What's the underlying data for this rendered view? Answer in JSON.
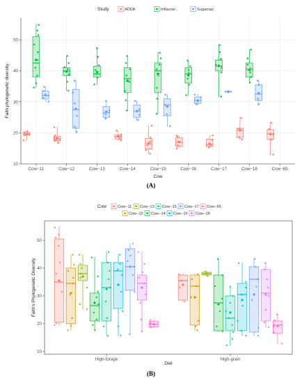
{
  "chart_data": [
    {
      "type": "box",
      "title": "",
      "legend_title": "Study",
      "legend_position": "top",
      "xlabel": "Cow",
      "ylabel": "Faith phylogenetic diversity",
      "ylim": [
        10,
        57
      ],
      "yticks": [
        10,
        20,
        30,
        40,
        50
      ],
      "grid": true,
      "categories": [
        "Cow−11",
        "Cow−12",
        "Cow−13",
        "Cow−14",
        "Cow−15",
        "Cow−16",
        "Cow−17",
        "Cow−18",
        "Cow−65"
      ],
      "series": [
        {
          "name": "ADDA",
          "color": "#F8766D",
          "boxes": [
            {
              "cat": 0,
              "min": 17.5,
              "q1": 19.3,
              "median": 19.7,
              "q3": 20.1,
              "max": 20.5,
              "mean": 19.6,
              "points": [
                17.6,
                19.2,
                19.5,
                19.9,
                20.2,
                20.5
              ]
            },
            {
              "cat": 1,
              "min": 16.7,
              "q1": 17.5,
              "median": 18.0,
              "q3": 18.9,
              "max": 22.0,
              "mean": 18.3,
              "points": [
                16.8,
                17.4,
                17.9,
                18.5,
                19.2,
                21.8
              ]
            },
            {
              "cat": 3,
              "min": 17.6,
              "q1": 18.0,
              "median": 18.8,
              "q3": 19.4,
              "max": 20.8,
              "mean": 18.9,
              "points": [
                17.6,
                18.2,
                18.9,
                19.5,
                20.7
              ]
            },
            {
              "cat": 4,
              "min": 13.2,
              "q1": 14.8,
              "median": 16.5,
              "q3": 18.2,
              "max": 22.5,
              "mean": 16.6,
              "points": [
                13.3,
                14.5,
                16.0,
                17.2,
                18.5,
                22.3
              ]
            },
            {
              "cat": 5,
              "min": 15.0,
              "q1": 15.7,
              "median": 17.0,
              "q3": 18.5,
              "max": 19.2,
              "mean": 17.1,
              "points": [
                15.0,
                16.0,
                17.2,
                18.7,
                19.1
              ]
            },
            {
              "cat": 6,
              "min": 15.2,
              "q1": 15.6,
              "median": 16.2,
              "q3": 18.0,
              "max": 19.3,
              "mean": 16.5,
              "points": [
                15.3,
                16.0,
                17.8,
                19.2
              ]
            },
            {
              "cat": 7,
              "min": 17.8,
              "q1": 18.5,
              "median": 20.8,
              "q3": 21.5,
              "max": 25.1,
              "mean": 20.9,
              "points": [
                17.9,
                18.6,
                20.7,
                21.4,
                24.8
              ]
            },
            {
              "cat": 8,
              "min": 12.8,
              "q1": 18.0,
              "median": 19.7,
              "q3": 21.0,
              "max": 23.5,
              "mean": 19.6,
              "points": [
                13.0,
                17.8,
                19.5,
                21.2,
                23.3
              ]
            }
          ]
        },
        {
          "name": "Inflacow",
          "color": "#00BA38",
          "boxes": [
            {
              "cat": 0,
              "min": 34.5,
              "q1": 38.0,
              "median": 42.5,
              "q3": 51.0,
              "max": 55.0,
              "mean": 43.5,
              "points": [
                34.6,
                36.0,
                38.5,
                41.0,
                43.5,
                46.0,
                48.5,
                51.5,
                53.0,
                54.8
              ]
            },
            {
              "cat": 1,
              "min": 33.5,
              "q1": 38.5,
              "median": 40.0,
              "q3": 41.0,
              "max": 45.0,
              "mean": 39.8,
              "points": [
                33.6,
                36.5,
                38.8,
                39.9,
                40.5,
                41.2,
                42.5,
                44.8
              ]
            },
            {
              "cat": 2,
              "min": 35.5,
              "q1": 38.0,
              "median": 39.0,
              "q3": 41.5,
              "max": 47.5,
              "mean": 39.6,
              "points": [
                35.6,
                37.8,
                39.0,
                40.3,
                41.8,
                44.5,
                47.3
              ]
            },
            {
              "cat": 3,
              "min": 27.0,
              "q1": 33.0,
              "median": 37.5,
              "q3": 41.0,
              "max": 45.0,
              "mean": 36.8,
              "points": [
                27.2,
                30.5,
                33.5,
                36.5,
                38.5,
                40.5,
                42.5,
                44.8
              ]
            },
            {
              "cat": 4,
              "min": 26.0,
              "q1": 33.0,
              "median": 40.0,
              "q3": 42.5,
              "max": 46.0,
              "mean": 39.0,
              "points": [
                26.2,
                31.0,
                34.5,
                38.5,
                40.5,
                42.0,
                44.0,
                45.8
              ]
            },
            {
              "cat": 5,
              "min": 32.0,
              "q1": 36.0,
              "median": 39.0,
              "q3": 41.0,
              "max": 43.5,
              "mean": 38.6,
              "points": [
                32.2,
                35.5,
                37.5,
                39.3,
                40.2,
                41.5,
                43.3
              ]
            },
            {
              "cat": 6,
              "min": 31.5,
              "q1": 40.0,
              "median": 41.5,
              "q3": 43.5,
              "max": 48.5,
              "mean": 41.6,
              "points": [
                31.7,
                39.5,
                41.0,
                42.0,
                43.8,
                46.0,
                48.3
              ]
            },
            {
              "cat": 7,
              "min": 36.0,
              "q1": 38.0,
              "median": 40.5,
              "q3": 42.5,
              "max": 47.0,
              "mean": 40.3,
              "points": [
                36.2,
                38.0,
                39.5,
                40.8,
                42.0,
                44.0,
                46.8
              ]
            }
          ]
        },
        {
          "name": "Sugarnay",
          "color": "#619CFF",
          "boxes": [
            {
              "cat": 0,
              "min": 30.0,
              "q1": 31.0,
              "median": 32.0,
              "q3": 33.5,
              "max": 35.0,
              "mean": 32.2,
              "points": [
                30.1,
                31.2,
                32.0,
                33.5,
                34.8
              ]
            },
            {
              "cat": 1,
              "min": 20.0,
              "q1": 21.5,
              "median": 27.5,
              "q3": 34.0,
              "max": 37.0,
              "mean": 27.7,
              "points": [
                20.2,
                22.0,
                25.5,
                29.5,
                33.0,
                36.8
              ]
            },
            {
              "cat": 2,
              "min": 24.5,
              "q1": 25.0,
              "median": 26.5,
              "q3": 28.5,
              "max": 30.5,
              "mean": 26.8,
              "points": [
                24.6,
                26.0,
                27.2,
                30.3
              ]
            },
            {
              "cat": 3,
              "min": 24.0,
              "q1": 25.0,
              "median": 27.0,
              "q3": 29.0,
              "max": 30.5,
              "mean": 27.0,
              "points": [
                24.2,
                25.8,
                27.5,
                30.3
              ]
            },
            {
              "cat": 4,
              "min": 22.0,
              "q1": 25.5,
              "median": 29.0,
              "q3": 31.0,
              "max": 32.5,
              "mean": 28.5,
              "points": [
                22.2,
                26.0,
                29.0,
                32.3
              ]
            },
            {
              "cat": 5,
              "min": 29.0,
              "q1": 29.5,
              "median": 30.5,
              "q3": 31.5,
              "max": 32.5,
              "mean": 30.4,
              "points": [
                29.2,
                30.3,
                31.5,
                32.3
              ]
            },
            {
              "cat": 6,
              "min": 33.2,
              "q1": 33.2,
              "median": 33.3,
              "q3": 33.4,
              "max": 33.4,
              "mean": 33.3,
              "points": [
                33.3
              ]
            },
            {
              "cat": 7,
              "min": 29.0,
              "q1": 30.5,
              "median": 32.5,
              "q3": 35.5,
              "max": 37.0,
              "mean": 32.7,
              "points": [
                29.2,
                31.0,
                33.0,
                35.5,
                36.8
              ]
            }
          ]
        }
      ]
    },
    {
      "type": "box",
      "title": "",
      "legend_title": "Cow",
      "legend_position": "top",
      "xlabel": "Diet",
      "ylabel": "Faith's Phylogenetic Diversity",
      "ylim": [
        9,
        57
      ],
      "yticks": [
        10,
        20,
        30,
        40,
        50
      ],
      "grid": false,
      "categories": [
        "High-forage",
        "High-grain"
      ],
      "series": [
        {
          "name": "Cow−11",
          "color": "#F8766D",
          "boxes": [
            {
              "cat": 0,
              "min": 19.5,
              "q1": 20.5,
              "median": 35.0,
              "q3": 50.5,
              "max": 55.0,
              "mean": 35.5,
              "points": [
                19.5,
                20.2,
                31.5,
                35.0,
                38.0,
                42.0,
                48.0,
                51.0,
                52.0,
                54.6
              ]
            },
            {
              "cat": 1,
              "min": 28.0,
              "q1": 28.5,
              "median": 35.5,
              "q3": 37.5,
              "max": 38.0,
              "mean": 34.0,
              "points": [
                28.0,
                33.0,
                35.5,
                37.8
              ]
            }
          ]
        },
        {
          "name": "Cow−12",
          "color": "#D39200",
          "boxes": [
            {
              "cat": 0,
              "min": 17.5,
              "q1": 20.0,
              "median": 34.5,
              "q3": 40.0,
              "max": 45.0,
              "mean": 31.0,
              "points": [
                17.6,
                19.2,
                22.0,
                30.5,
                34.5,
                36.5,
                39.0,
                41.2,
                44.8
              ]
            },
            {
              "cat": 1,
              "min": 17.5,
              "q1": 19.5,
              "median": 33.5,
              "q3": 37.5,
              "max": 38.0,
              "mean": 29.5,
              "points": [
                17.6,
                19.0,
                21.0,
                29.5,
                33.5,
                36.0,
                37.8
              ]
            }
          ]
        },
        {
          "name": "Cow−13",
          "color": "#93AA00",
          "boxes": [
            {
              "cat": 0,
              "min": 25.0,
              "q1": 35.5,
              "median": 38.0,
              "q3": 41.0,
              "max": 45.0,
              "mean": 37.0,
              "points": [
                25.2,
                27.0,
                33.0,
                36.5,
                38.0,
                40.0,
                41.5,
                44.8
              ]
            },
            {
              "cat": 1,
              "min": 37.0,
              "q1": 37.5,
              "median": 38.0,
              "q3": 38.5,
              "max": 39.0,
              "mean": 38.0,
              "points": [
                37.2,
                37.8,
                38.2,
                38.8
              ]
            }
          ]
        },
        {
          "name": "Cow−14",
          "color": "#00BA38",
          "boxes": [
            {
              "cat": 0,
              "min": 17.5,
              "q1": 21.0,
              "median": 26.5,
              "q3": 31.0,
              "max": 44.0,
              "mean": 27.5,
              "points": [
                17.6,
                19.5,
                21.5,
                24.0,
                27.0,
                29.5,
                31.5,
                37.0,
                43.8
              ]
            },
            {
              "cat": 1,
              "min": 17.0,
              "q1": 17.5,
              "median": 27.5,
              "q3": 37.5,
              "max": 43.5,
              "mean": 27.0,
              "points": [
                17.2,
                19.0,
                24.5,
                29.0,
                33.5,
                37.5,
                43.3
              ]
            }
          ]
        },
        {
          "name": "Cow−15",
          "color": "#00C19F",
          "boxes": [
            {
              "cat": 0,
              "min": 15.5,
              "q1": 21.0,
              "median": 33.0,
              "q3": 42.0,
              "max": 46.0,
              "mean": 32.5,
              "points": [
                15.6,
                19.0,
                22.0,
                28.0,
                33.0,
                36.0,
                39.0,
                42.0,
                45.8
              ]
            },
            {
              "cat": 1,
              "min": 12.0,
              "q1": 17.5,
              "median": 22.0,
              "q3": 30.0,
              "max": 33.5,
              "mean": 24.0,
              "points": [
                12.2,
                14.5,
                17.0,
                19.5,
                22.0,
                24.5,
                27.5,
                30.0,
                33.3
              ]
            }
          ]
        },
        {
          "name": "Cow−16",
          "color": "#00B9E3",
          "boxes": [
            {
              "cat": 0,
              "min": 15.5,
              "q1": 25.5,
              "median": 39.0,
              "q3": 42.0,
              "max": 45.0,
              "mean": 34.0,
              "points": [
                15.7,
                19.0,
                24.5,
                31.5,
                37.5,
                39.5,
                41.5,
                44.8
              ]
            },
            {
              "cat": 1,
              "min": 15.5,
              "q1": 17.5,
              "median": 30.5,
              "q3": 34.5,
              "max": 42.0,
              "mean": 28.5,
              "points": [
                15.7,
                17.5,
                21.0,
                26.5,
                30.5,
                33.0,
                35.0,
                41.8
              ]
            }
          ]
        },
        {
          "name": "Cow−17",
          "color": "#619CFF",
          "boxes": [
            {
              "cat": 0,
              "min": 16.0,
              "q1": 32.0,
              "median": 40.5,
              "q3": 47.0,
              "max": 49.0,
              "mean": 40.5,
              "points": [
                16.2,
                31.5,
                37.5,
                40.5,
                42.5,
                44.5,
                46.5,
                48.8
              ]
            },
            {
              "cat": 1,
              "min": 15.5,
              "q1": 17.0,
              "median": 36.0,
              "q3": 40.5,
              "max": 43.5,
              "mean": 30.5,
              "points": [
                15.7,
                18.5,
                28.5,
                33.3,
                36.0,
                40.5,
                43.3
              ]
            }
          ]
        },
        {
          "name": "Cow−18",
          "color": "#DB72FB",
          "boxes": [
            {
              "cat": 0,
              "min": 17.0,
              "q1": 28.5,
              "median": 34.5,
              "q3": 37.5,
              "max": 46.0,
              "mean": 33.0,
              "points": [
                17.2,
                21.5,
                27.5,
                30.5,
                34.5,
                36.5,
                38.5,
                41.5,
                45.8
              ]
            },
            {
              "cat": 1,
              "min": 18.5,
              "q1": 21.0,
              "median": 31.0,
              "q3": 39.5,
              "max": 42.0,
              "mean": 30.5,
              "points": [
                18.7,
                20.5,
                25.0,
                30.0,
                33.0,
                36.0,
                39.5,
                41.8
              ]
            }
          ]
        },
        {
          "name": "Cow−65",
          "color": "#FF61C3",
          "boxes": [
            {
              "cat": 0,
              "min": 18.5,
              "q1": 18.8,
              "median": 19.8,
              "q3": 20.8,
              "max": 21.5,
              "mean": 19.8,
              "points": [
                18.6,
                19.5,
                20.3,
                21.3
              ]
            },
            {
              "cat": 1,
              "min": 12.5,
              "q1": 16.5,
              "median": 19.5,
              "q3": 21.0,
              "max": 23.5,
              "mean": 19.2,
              "points": [
                12.8,
                16.8,
                19.0,
                21.2,
                23.3
              ]
            }
          ]
        }
      ]
    }
  ],
  "captions": [
    "(A)",
    "(B)"
  ]
}
